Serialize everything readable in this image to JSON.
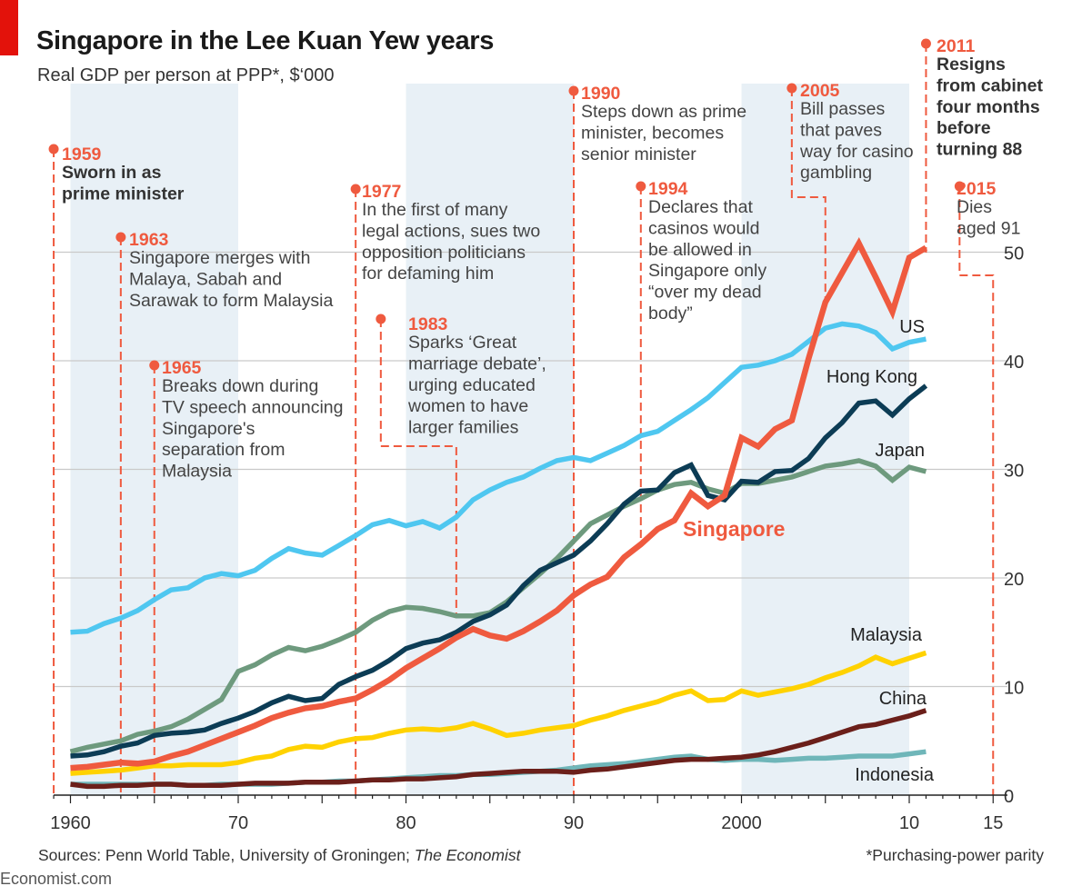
{
  "header": {
    "title": "Singapore in the Lee Kuan Yew years",
    "subtitle": "Real GDP per person at PPP*,  $‘000"
  },
  "footer": {
    "sources_prefix": "Sources: Penn World Table, University of Groningen; ",
    "sources_italic": "The Economist",
    "note": "*Purchasing-power parity",
    "brand": "Economist.com"
  },
  "colors": {
    "accent_red": "#e3120b",
    "shade": "#e8f0f6",
    "grid": "#c9c9c9",
    "annotation": "#ef5a3f",
    "singapore": "#ef5a3f",
    "us": "#4fc7f0",
    "hong_kong": "#0c3c55",
    "japan": "#6e9a7e",
    "malaysia": "#ffd200",
    "china": "#6b1f1a",
    "indonesia": "#6fb6b9"
  },
  "chart_data": {
    "type": "line",
    "title": "Singapore in the Lee Kuan Yew years",
    "subtitle": "Real GDP per person at PPP*, $'000",
    "xlabel": "",
    "ylabel": "$'000",
    "xlim": [
      1959,
      2015
    ],
    "ylim": [
      0,
      52
    ],
    "grid": true,
    "x_ticks": [
      {
        "value": 1960,
        "label": "1960"
      },
      {
        "value": 1970,
        "label": "70"
      },
      {
        "value": 1980,
        "label": "80"
      },
      {
        "value": 1990,
        "label": "90"
      },
      {
        "value": 2000,
        "label": "2000"
      },
      {
        "value": 2010,
        "label": "10"
      },
      {
        "value": 2015,
        "label": "15"
      }
    ],
    "y_ticks": [
      {
        "value": 0,
        "label": "0"
      },
      {
        "value": 10,
        "label": "10"
      },
      {
        "value": 20,
        "label": "20"
      },
      {
        "value": 30,
        "label": "30"
      },
      {
        "value": 40,
        "label": "40"
      },
      {
        "value": 50,
        "label": "50"
      }
    ],
    "shaded_periods": [
      [
        1960,
        1970
      ],
      [
        1980,
        1990
      ],
      [
        2000,
        2010
      ]
    ],
    "x": [
      1960,
      1961,
      1962,
      1963,
      1964,
      1965,
      1966,
      1967,
      1968,
      1969,
      1970,
      1971,
      1972,
      1973,
      1974,
      1975,
      1976,
      1977,
      1978,
      1979,
      1980,
      1981,
      1982,
      1983,
      1984,
      1985,
      1986,
      1987,
      1988,
      1989,
      1990,
      1991,
      1992,
      1993,
      1994,
      1995,
      1996,
      1997,
      1998,
      1999,
      2000,
      2001,
      2002,
      2003,
      2004,
      2005,
      2006,
      2007,
      2008,
      2009,
      2010,
      2011
    ],
    "series": [
      {
        "name": "US",
        "key": "us",
        "color_key": "us",
        "values": [
          15.0,
          15.1,
          15.8,
          16.3,
          17.0,
          18.0,
          18.9,
          19.1,
          20.0,
          20.4,
          20.2,
          20.7,
          21.8,
          22.7,
          22.3,
          22.1,
          23.0,
          23.9,
          24.9,
          25.3,
          24.8,
          25.2,
          24.6,
          25.6,
          27.2,
          28.1,
          28.8,
          29.3,
          30.1,
          30.8,
          31.1,
          30.8,
          31.5,
          32.2,
          33.1,
          33.5,
          34.5,
          35.5,
          36.6,
          38.0,
          39.4,
          39.6,
          40.0,
          40.6,
          41.8,
          43.0,
          43.4,
          43.2,
          42.6,
          41.1,
          41.7,
          42.0
        ]
      },
      {
        "name": "Hong Kong",
        "key": "hong_kong",
        "color_key": "hong_kong",
        "values": [
          3.6,
          3.7,
          4.0,
          4.5,
          4.8,
          5.5,
          5.7,
          5.8,
          6.0,
          6.6,
          7.1,
          7.7,
          8.5,
          9.1,
          8.7,
          8.9,
          10.2,
          10.9,
          11.5,
          12.4,
          13.5,
          14.0,
          14.3,
          15.0,
          16.0,
          16.6,
          17.5,
          19.3,
          20.7,
          21.4,
          22.1,
          23.4,
          25.0,
          26.8,
          28.0,
          28.1,
          29.7,
          30.4,
          27.6,
          27.2,
          28.9,
          28.8,
          29.8,
          29.9,
          31.0,
          32.9,
          34.3,
          36.1,
          36.3,
          35.0,
          36.5,
          37.7
        ]
      },
      {
        "name": "Japan",
        "key": "japan",
        "color_key": "japan",
        "values": [
          4.0,
          4.4,
          4.7,
          5.0,
          5.6,
          5.9,
          6.3,
          7.0,
          7.9,
          8.8,
          11.4,
          12.0,
          12.9,
          13.6,
          13.3,
          13.7,
          14.3,
          15.0,
          16.1,
          16.9,
          17.3,
          17.2,
          16.9,
          16.5,
          16.5,
          16.8,
          17.8,
          19.1,
          20.4,
          21.8,
          23.4,
          25.0,
          25.8,
          26.6,
          27.3,
          28.1,
          28.6,
          28.8,
          28.2,
          27.8,
          28.7,
          28.7,
          29.0,
          29.3,
          29.8,
          30.3,
          30.5,
          30.8,
          30.3,
          29.0,
          30.2,
          29.8
        ]
      },
      {
        "name": "Singapore",
        "key": "singapore",
        "color_key": "singapore",
        "values": [
          2.5,
          2.6,
          2.8,
          3.0,
          2.9,
          3.1,
          3.6,
          4.0,
          4.6,
          5.2,
          5.8,
          6.4,
          7.1,
          7.6,
          8.0,
          8.2,
          8.6,
          8.9,
          9.7,
          10.6,
          11.7,
          12.6,
          13.5,
          14.5,
          15.3,
          14.7,
          14.4,
          15.1,
          16.0,
          17.0,
          18.4,
          19.4,
          20.1,
          21.9,
          23.1,
          24.5,
          25.3,
          27.8,
          26.6,
          27.6,
          32.9,
          32.1,
          33.7,
          34.5,
          40.2,
          45.4,
          48.1,
          50.8,
          47.7,
          44.5,
          49.5,
          50.4
        ]
      },
      {
        "name": "Malaysia",
        "key": "malaysia",
        "color_key": "malaysia",
        "values": [
          2.0,
          2.1,
          2.2,
          2.3,
          2.5,
          2.7,
          2.7,
          2.8,
          2.8,
          2.8,
          3.0,
          3.4,
          3.6,
          4.2,
          4.5,
          4.4,
          4.9,
          5.2,
          5.3,
          5.7,
          6.0,
          6.1,
          6.0,
          6.2,
          6.6,
          6.1,
          5.5,
          5.7,
          6.0,
          6.2,
          6.4,
          6.9,
          7.3,
          7.8,
          8.2,
          8.6,
          9.2,
          9.6,
          8.7,
          8.8,
          9.6,
          9.2,
          9.5,
          9.8,
          10.2,
          10.8,
          11.3,
          11.9,
          12.7,
          12.1,
          12.6,
          13.1
        ]
      },
      {
        "name": "China",
        "key": "china",
        "color_key": "china",
        "values": [
          1.0,
          0.8,
          0.8,
          0.9,
          0.9,
          1.0,
          1.0,
          0.9,
          0.9,
          0.9,
          1.0,
          1.1,
          1.1,
          1.1,
          1.2,
          1.2,
          1.2,
          1.3,
          1.4,
          1.4,
          1.5,
          1.5,
          1.6,
          1.7,
          1.9,
          2.0,
          2.1,
          2.2,
          2.2,
          2.2,
          2.1,
          2.3,
          2.4,
          2.6,
          2.8,
          3.0,
          3.2,
          3.3,
          3.3,
          3.4,
          3.5,
          3.7,
          4.0,
          4.4,
          4.8,
          5.3,
          5.8,
          6.3,
          6.5,
          6.9,
          7.3,
          7.8
        ]
      },
      {
        "name": "Indonesia",
        "key": "indonesia",
        "color_key": "indonesia",
        "values": [
          1.0,
          1.0,
          1.0,
          1.0,
          1.0,
          1.0,
          1.0,
          0.9,
          0.9,
          1.0,
          1.0,
          1.0,
          1.0,
          1.1,
          1.2,
          1.2,
          1.3,
          1.3,
          1.4,
          1.5,
          1.6,
          1.7,
          1.8,
          1.8,
          1.9,
          1.9,
          2.0,
          2.1,
          2.2,
          2.3,
          2.5,
          2.7,
          2.8,
          2.9,
          3.1,
          3.3,
          3.5,
          3.6,
          3.3,
          3.2,
          3.3,
          3.3,
          3.2,
          3.3,
          3.4,
          3.4,
          3.5,
          3.6,
          3.6,
          3.6,
          3.8,
          4.0
        ]
      }
    ],
    "series_labels": [
      {
        "key": "us",
        "text": "US"
      },
      {
        "key": "hong_kong",
        "text": "Hong Kong"
      },
      {
        "key": "japan",
        "text": "Japan"
      },
      {
        "key": "singapore",
        "text": "Singapore"
      },
      {
        "key": "malaysia",
        "text": "Malaysia"
      },
      {
        "key": "china",
        "text": "China"
      },
      {
        "key": "indonesia",
        "text": "Indonesia"
      }
    ],
    "annotations": [
      {
        "key": "1959",
        "year": "1959",
        "lines": [
          "Sworn in as",
          "prime minister"
        ],
        "bold": true
      },
      {
        "key": "1963",
        "year": "1963",
        "lines": [
          "Singapore merges with",
          "Malaya, Sabah and",
          "Sarawak to form Malaysia"
        ],
        "bold": false
      },
      {
        "key": "1965",
        "year": "1965",
        "lines": [
          "Breaks down during",
          "TV speech announcing",
          "Singapore's",
          "separation from",
          "Malaysia"
        ],
        "bold": false
      },
      {
        "key": "1977",
        "year": "1977",
        "lines": [
          "In the first of many",
          "legal actions, sues two",
          "opposition politicians",
          "for defaming him"
        ],
        "bold": false
      },
      {
        "key": "1983",
        "year": "1983",
        "lines": [
          "Sparks ‘Great",
          "marriage debate’,",
          "urging educated",
          "women to have",
          "larger families"
        ],
        "bold": false
      },
      {
        "key": "1990",
        "year": "1990",
        "lines": [
          "Steps down as prime",
          "minister, becomes",
          "senior minister"
        ],
        "bold": false
      },
      {
        "key": "1994",
        "year": "1994",
        "lines": [
          "Declares that",
          "casinos would",
          "be allowed in",
          "Singapore only",
          "“over my dead",
          "body”"
        ],
        "bold": false
      },
      {
        "key": "2005",
        "year": "2005",
        "lines": [
          "Bill passes",
          "that paves",
          "way for casino",
          "gambling"
        ],
        "bold": false
      },
      {
        "key": "2011",
        "year": "2011",
        "lines": [
          "Resigns",
          "from cabinet",
          "four months",
          "before",
          "turning 88"
        ],
        "bold": true
      },
      {
        "key": "2015",
        "year": "2015",
        "lines": [
          "Dies",
          "aged 91"
        ],
        "bold": false
      }
    ]
  }
}
